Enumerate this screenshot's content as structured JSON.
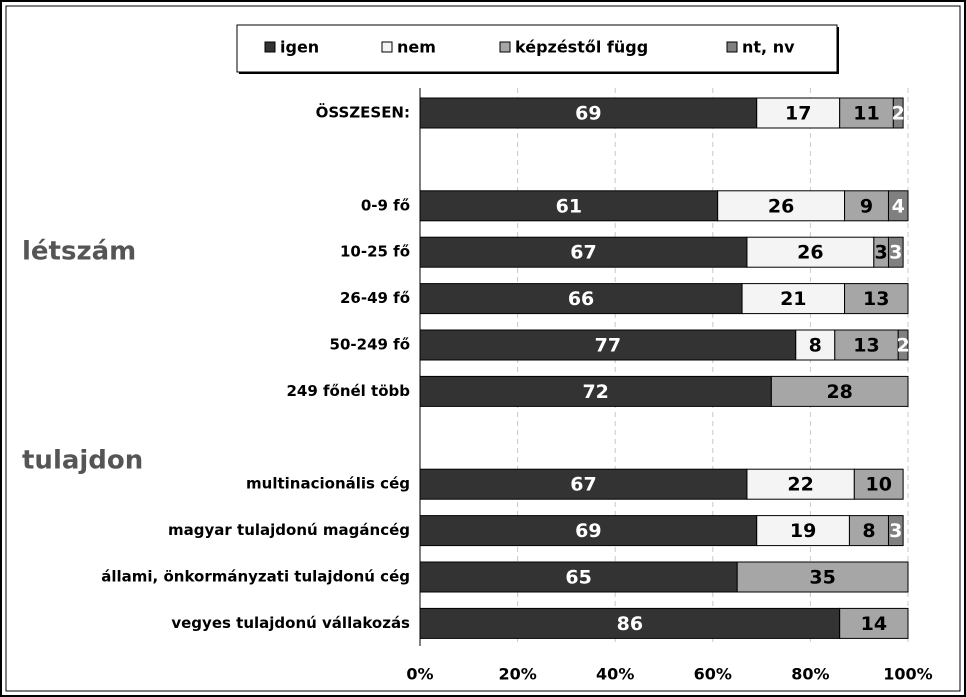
{
  "chart_data": {
    "type": "stacked_barh",
    "categories": [
      "ÖSSZESEN:",
      null,
      "0-9 fő",
      "10-25 fő",
      "26-49 fő",
      "50-249 fő",
      "249 főnél több",
      null,
      "multinacionális cég",
      "magyar tulajdonú magáncég",
      "állami, önkormányzati tulajdonú cég",
      "vegyes tulajdonú vállakozás"
    ],
    "series": [
      {
        "name": "igen",
        "color": "#333333",
        "label_color": "#ffffff",
        "values": [
          69,
          null,
          61,
          67,
          66,
          77,
          72,
          null,
          67,
          69,
          65,
          86
        ]
      },
      {
        "name": "nem",
        "color": "#f4f4f4",
        "label_color": "#000000",
        "values": [
          17,
          null,
          26,
          26,
          21,
          8,
          null,
          null,
          22,
          19,
          null,
          null
        ]
      },
      {
        "name": "képzéstől függ",
        "color": "#a6a6a6",
        "label_color": "#000000",
        "values": [
          11,
          null,
          9,
          3,
          13,
          13,
          28,
          null,
          10,
          8,
          35,
          14
        ]
      },
      {
        "name": "nt, nv",
        "color": "#808080",
        "label_color": "#ffffff",
        "values": [
          2,
          null,
          4,
          3,
          null,
          2,
          null,
          null,
          null,
          3,
          null,
          null
        ]
      }
    ],
    "annotations": [
      {
        "text": "létszám",
        "row": 3
      },
      {
        "text": "tulajdon",
        "row": 7.5
      }
    ],
    "xlim": [
      0,
      100
    ],
    "xticks": [
      {
        "value": 0,
        "label": "0%"
      },
      {
        "value": 20,
        "label": "20%"
      },
      {
        "value": 40,
        "label": "40%"
      },
      {
        "value": 60,
        "label": "60%"
      },
      {
        "value": 80,
        "label": "80%"
      },
      {
        "value": 100,
        "label": "100%"
      }
    ],
    "grid": true
  }
}
